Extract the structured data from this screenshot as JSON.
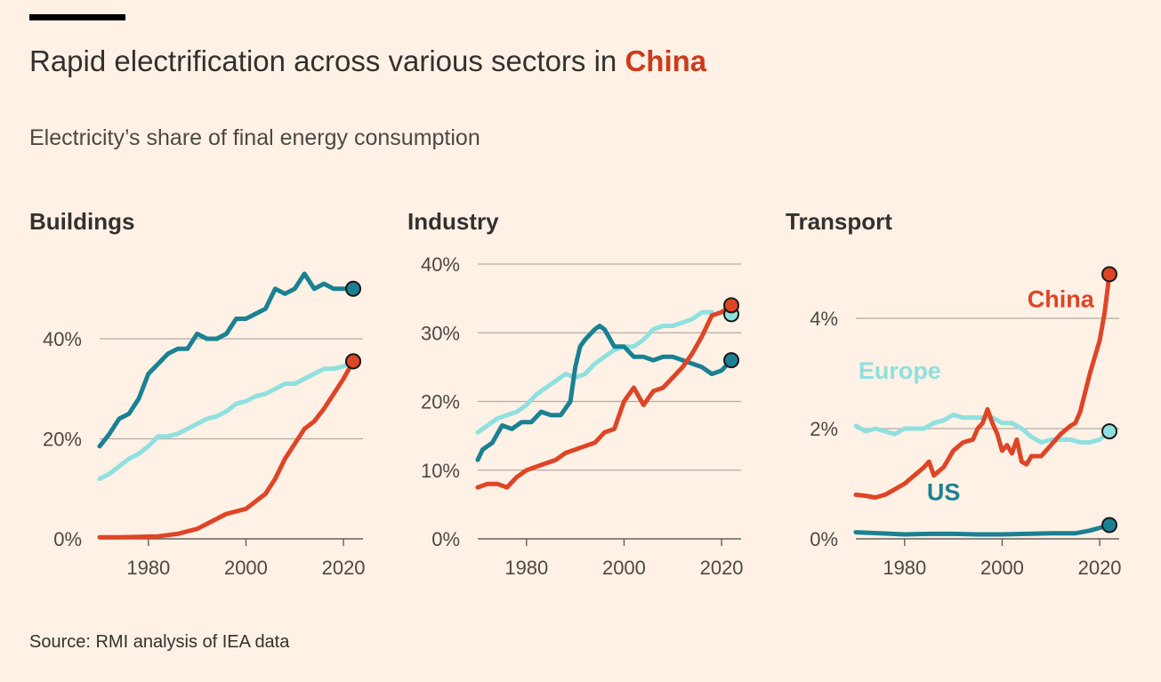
{
  "header": {
    "title_prefix": "Rapid electrification across various sectors in ",
    "title_highlight": "China",
    "subtitle": "Electricity’s share of final energy consumption",
    "source": "Source: RMI analysis of IEA data"
  },
  "colors": {
    "china": "#de4526",
    "us": "#1a8192",
    "europe": "#8fe0df",
    "grid": "#b5aba3",
    "axis": "#66605c",
    "background": "#fff1e5"
  },
  "chart_data": [
    {
      "type": "line",
      "title": "Buildings",
      "xlim": [
        1970,
        2024
      ],
      "ylim": [
        0,
        55
      ],
      "xticks": [
        1980,
        2000,
        2020
      ],
      "xtick_labels": [
        "1980",
        "2000",
        "2020"
      ],
      "yticks": [
        0,
        20,
        40
      ],
      "ytick_labels": [
        "0%",
        "20%",
        "40%"
      ],
      "series": [
        {
          "name": "US",
          "color_key": "us",
          "x": [
            1970,
            1972,
            1974,
            1976,
            1978,
            1980,
            1982,
            1984,
            1986,
            1988,
            1990,
            1992,
            1994,
            1996,
            1998,
            2000,
            2002,
            2004,
            2006,
            2008,
            2010,
            2012,
            2014,
            2016,
            2018,
            2020,
            2022
          ],
          "y": [
            18.5,
            21,
            24,
            25,
            28,
            33,
            35,
            37,
            38,
            38,
            41,
            40,
            40,
            41,
            44,
            44,
            45,
            46,
            50,
            49,
            50,
            53,
            50,
            51,
            50,
            50,
            50
          ]
        },
        {
          "name": "Europe",
          "color_key": "europe",
          "x": [
            1970,
            1972,
            1974,
            1976,
            1978,
            1980,
            1982,
            1984,
            1986,
            1988,
            1990,
            1992,
            1994,
            1996,
            1998,
            2000,
            2002,
            2004,
            2006,
            2008,
            2010,
            2012,
            2014,
            2016,
            2018,
            2020,
            2022
          ],
          "y": [
            12,
            13,
            14.5,
            16,
            17,
            18.5,
            20.5,
            20.5,
            21,
            22,
            23,
            24,
            24.5,
            25.5,
            27,
            27.5,
            28.5,
            29,
            30,
            31,
            31,
            32,
            33,
            34,
            34,
            34.5,
            35.5
          ]
        },
        {
          "name": "China",
          "color_key": "china",
          "x": [
            1970,
            1974,
            1978,
            1982,
            1986,
            1988,
            1990,
            1992,
            1994,
            1996,
            1998,
            2000,
            2002,
            2004,
            2006,
            2008,
            2010,
            2012,
            2014,
            2016,
            2018,
            2020,
            2022
          ],
          "y": [
            0.3,
            0.3,
            0.4,
            0.5,
            1,
            1.5,
            2,
            3,
            4,
            5,
            5.5,
            6,
            7.5,
            9,
            12,
            16,
            19,
            22,
            23.5,
            26,
            29,
            32,
            35.5
          ]
        }
      ]
    },
    {
      "type": "line",
      "title": "Industry",
      "xlim": [
        1970,
        2024
      ],
      "ylim": [
        0,
        40
      ],
      "xticks": [
        1980,
        2000,
        2020
      ],
      "xtick_labels": [
        "1980",
        "2000",
        "2020"
      ],
      "yticks": [
        0,
        10,
        20,
        30,
        40
      ],
      "ytick_labels": [
        "0%",
        "10%",
        "20%",
        "30%",
        "40%"
      ],
      "series": [
        {
          "name": "Europe",
          "color_key": "europe",
          "x": [
            1970,
            1972,
            1974,
            1976,
            1978,
            1980,
            1982,
            1984,
            1986,
            1988,
            1990,
            1992,
            1994,
            1996,
            1998,
            2000,
            2002,
            2004,
            2006,
            2008,
            2010,
            2012,
            2014,
            2016,
            2018
          ],
          "y": [
            15.5,
            16.5,
            17.5,
            18,
            18.5,
            19.5,
            21,
            22,
            23,
            24,
            23.5,
            24,
            25.5,
            26.5,
            27.5,
            28,
            28,
            29,
            30.5,
            31,
            31,
            31.5,
            32,
            33,
            33
          ]
        },
        {
          "name": "US",
          "color_key": "us",
          "x": [
            1970,
            1971,
            1973,
            1975,
            1977,
            1979,
            1981,
            1983,
            1985,
            1987,
            1989,
            1990,
            1991,
            1992,
            1994,
            1995,
            1996,
            1998,
            2000,
            2002,
            2004,
            2006,
            2008,
            2010,
            2012,
            2014,
            2016,
            2018,
            2020,
            2022
          ],
          "y": [
            11.5,
            13,
            14,
            16.5,
            16,
            17,
            17,
            18.5,
            18,
            18,
            20,
            25,
            28,
            29,
            30.5,
            31,
            30.5,
            28,
            28,
            26.5,
            26.5,
            26,
            26.5,
            26.5,
            26,
            25.5,
            25,
            24,
            24.5,
            26
          ]
        },
        {
          "name": "China",
          "color_key": "china",
          "x": [
            1970,
            1972,
            1974,
            1976,
            1978,
            1980,
            1982,
            1984,
            1986,
            1988,
            1990,
            1992,
            1994,
            1996,
            1998,
            2000,
            2002,
            2004,
            2006,
            2008,
            2010,
            2012,
            2014,
            2016,
            2018,
            2020,
            2022
          ],
          "y": [
            7.5,
            8,
            8,
            7.5,
            9,
            10,
            10.5,
            11,
            11.5,
            12.5,
            13,
            13.5,
            14,
            15.5,
            16,
            20,
            22,
            19.5,
            21.5,
            22,
            23.5,
            25,
            27,
            29.5,
            32.5,
            33,
            34
          ]
        },
        {
          "name": "Europe end",
          "color_key": "europe",
          "x": [
            2018,
            2022
          ],
          "y": [
            33,
            32.7
          ],
          "hidden": true
        }
      ]
    },
    {
      "type": "line",
      "title": "Transport",
      "xlim": [
        1970,
        2024
      ],
      "ylim": [
        0,
        5
      ],
      "xticks": [
        1980,
        2000,
        2020
      ],
      "xtick_labels": [
        "1980",
        "2000",
        "2020"
      ],
      "yticks": [
        0,
        2,
        4
      ],
      "ytick_labels": [
        "0%",
        "2%",
        "4%"
      ],
      "series_labels": [
        {
          "text": "China",
          "color_key": "china",
          "x": 2012,
          "y": 4.2
        },
        {
          "text": "Europe",
          "color_key": "europe",
          "x": 1979,
          "y": 2.9
        },
        {
          "text": "US",
          "color_key": "us",
          "x": 1988,
          "y": 0.7
        }
      ],
      "series": [
        {
          "name": "Europe",
          "color_key": "europe",
          "x": [
            1970,
            1972,
            1974,
            1976,
            1978,
            1980,
            1982,
            1984,
            1986,
            1988,
            1990,
            1992,
            1994,
            1996,
            1998,
            2000,
            2002,
            2004,
            2006,
            2008,
            2010,
            2012,
            2014,
            2016,
            2018,
            2020,
            2022
          ],
          "y": [
            2.05,
            1.95,
            2.0,
            1.95,
            1.9,
            2.0,
            2.0,
            2.0,
            2.1,
            2.15,
            2.25,
            2.2,
            2.2,
            2.2,
            2.2,
            2.1,
            2.1,
            2.0,
            1.85,
            1.75,
            1.8,
            1.8,
            1.8,
            1.75,
            1.75,
            1.8,
            1.95
          ]
        },
        {
          "name": "US",
          "color_key": "us",
          "x": [
            1970,
            1975,
            1980,
            1985,
            1990,
            1995,
            2000,
            2005,
            2010,
            2015,
            2018,
            2020,
            2022
          ],
          "y": [
            0.12,
            0.1,
            0.08,
            0.09,
            0.09,
            0.08,
            0.08,
            0.09,
            0.1,
            0.1,
            0.15,
            0.2,
            0.25
          ]
        },
        {
          "name": "China",
          "color_key": "china",
          "x": [
            1970,
            1972,
            1974,
            1976,
            1978,
            1980,
            1982,
            1984,
            1985,
            1986,
            1988,
            1990,
            1992,
            1994,
            1995,
            1996,
            1997,
            1998,
            1999,
            2000,
            2001,
            2002,
            2003,
            2004,
            2005,
            2006,
            2008,
            2010,
            2012,
            2014,
            2015,
            2016,
            2018,
            2020,
            2021,
            2022
          ],
          "y": [
            0.8,
            0.78,
            0.75,
            0.8,
            0.9,
            1.0,
            1.15,
            1.3,
            1.4,
            1.15,
            1.3,
            1.6,
            1.75,
            1.8,
            2.0,
            2.1,
            2.35,
            2.1,
            1.9,
            1.6,
            1.7,
            1.55,
            1.8,
            1.4,
            1.35,
            1.5,
            1.5,
            1.7,
            1.9,
            2.05,
            2.1,
            2.3,
            3.0,
            3.6,
            4.1,
            4.8
          ]
        }
      ]
    }
  ]
}
